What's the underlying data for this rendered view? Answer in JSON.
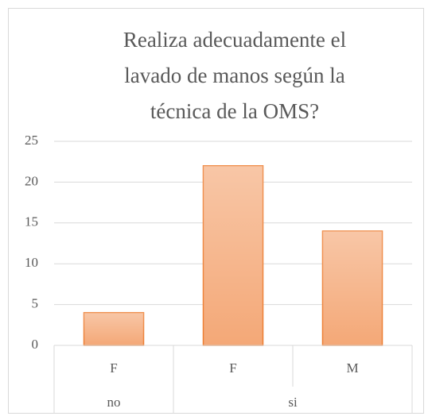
{
  "chart_data": {
    "type": "bar",
    "title": "Realiza adecuadamente el lavado de manos según la técnica de la OMS?",
    "categories": [
      "F",
      "F",
      "M"
    ],
    "groups": [
      {
        "label": "no",
        "size": 1
      },
      {
        "label": "si",
        "size": 2
      }
    ],
    "values": [
      4,
      22,
      14
    ],
    "color": "#f4a877",
    "edge_color": "#ed7d31",
    "ylim": [
      0,
      25
    ],
    "yticks": [
      0,
      5,
      10,
      15,
      20,
      25
    ],
    "grid": true
  }
}
